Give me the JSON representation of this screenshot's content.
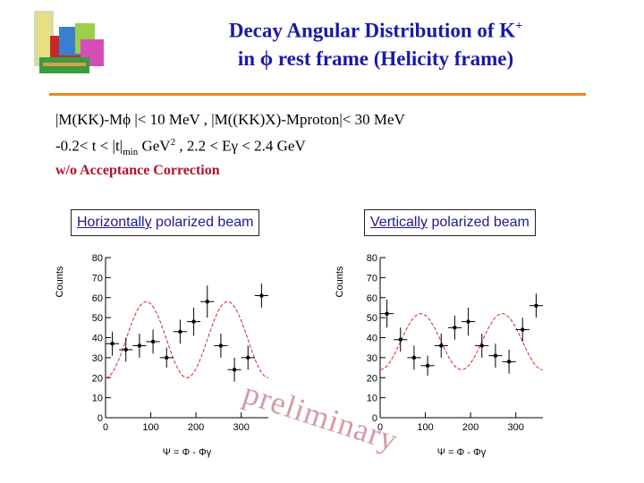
{
  "title": {
    "line1": "Decay Angular Distribution of K",
    "line1_sup": "+",
    "line2": "in ϕ rest frame (Helicity frame)"
  },
  "conditions": {
    "line1": "|M(KK)-Mϕ |< 10 MeV , |M((KK)X)-Mproton|< 30 MeV",
    "line2_a": "-0.2< t < |t|",
    "line2_sub": "min",
    "line2_b": " GeV",
    "line2_sup": "2",
    "line2_c": "   , 2.2 < Eγ < 2.4 GeV",
    "note": "w/o Acceptance Correction"
  },
  "beams": {
    "left_underlined": "Horizontally",
    "left_rest": " polarized beam",
    "right_underlined": "Vertically",
    "right_rest": " polarized beam"
  },
  "watermark": "preliminary",
  "colors": {
    "title": "#1a1aa6",
    "rule": "#e58a1a",
    "note": "#b0122c",
    "fit": "#d42a2a"
  },
  "chart_data": [
    {
      "type": "scatter",
      "title": "",
      "ylabel": "Counts",
      "xlabel": "Ψ = Φ - Φγ",
      "xlim": [
        0,
        360
      ],
      "ylim": [
        0,
        80
      ],
      "xticks": [
        "0",
        "100",
        "200",
        "300"
      ],
      "yticks": [
        "0",
        "10",
        "20",
        "30",
        "40",
        "50",
        "60",
        "70",
        "80"
      ],
      "points": [
        {
          "x": 15,
          "y": 37,
          "err": 6
        },
        {
          "x": 45,
          "y": 34,
          "err": 6
        },
        {
          "x": 75,
          "y": 36,
          "err": 6
        },
        {
          "x": 105,
          "y": 38,
          "err": 6
        },
        {
          "x": 135,
          "y": 30,
          "err": 5
        },
        {
          "x": 165,
          "y": 43,
          "err": 6
        },
        {
          "x": 195,
          "y": 48,
          "err": 7
        },
        {
          "x": 225,
          "y": 58,
          "err": 8
        },
        {
          "x": 255,
          "y": 36,
          "err": 6
        },
        {
          "x": 285,
          "y": 24,
          "err": 6
        },
        {
          "x": 315,
          "y": 30,
          "err": 6
        },
        {
          "x": 345,
          "y": 61,
          "err": 6
        }
      ],
      "fit": {
        "type": "cosine",
        "offset": 39,
        "amplitude": 19,
        "period": 180
      }
    },
    {
      "type": "scatter",
      "title": "",
      "ylabel": "Counts",
      "xlabel": "Ψ = Φ - Φγ",
      "xlim": [
        0,
        360
      ],
      "ylim": [
        0,
        80
      ],
      "xticks": [
        "0",
        "100",
        "200",
        "300"
      ],
      "yticks": [
        "0",
        "10",
        "20",
        "30",
        "40",
        "50",
        "60",
        "70",
        "80"
      ],
      "points": [
        {
          "x": 15,
          "y": 52,
          "err": 7
        },
        {
          "x": 45,
          "y": 39,
          "err": 6
        },
        {
          "x": 75,
          "y": 30,
          "err": 6
        },
        {
          "x": 105,
          "y": 26,
          "err": 5
        },
        {
          "x": 135,
          "y": 36,
          "err": 6
        },
        {
          "x": 165,
          "y": 45,
          "err": 6
        },
        {
          "x": 195,
          "y": 48,
          "err": 7
        },
        {
          "x": 225,
          "y": 36,
          "err": 6
        },
        {
          "x": 255,
          "y": 31,
          "err": 6
        },
        {
          "x": 285,
          "y": 28,
          "err": 6
        },
        {
          "x": 315,
          "y": 44,
          "err": 6
        },
        {
          "x": 345,
          "y": 56,
          "err": 6
        }
      ],
      "fit": {
        "type": "cosine",
        "offset": 38,
        "amplitude": 14,
        "period": 180
      }
    }
  ]
}
